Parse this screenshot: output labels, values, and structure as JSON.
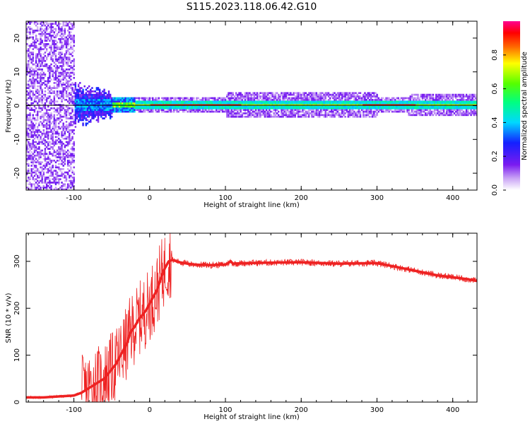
{
  "title": "S115.2023.118.06.42.G10",
  "colors": {
    "snr_line": "#ee2222",
    "baseline": "#000000"
  },
  "chart_data": [
    {
      "type": "heatmap",
      "xlabel": "Height of straight line (km)",
      "ylabel": "Frequency (Hz)",
      "xlim": [
        -163,
        432
      ],
      "ylim": [
        -25,
        25
      ],
      "xticks": [
        -100,
        0,
        100,
        200,
        300,
        400
      ],
      "yticks": [
        -20,
        -10,
        0,
        10,
        20
      ],
      "colorbar": {
        "label": "Normalized spectral amplitude",
        "range": [
          0,
          1
        ],
        "ticks": [
          0.0,
          0.2,
          0.4,
          0.6,
          0.8
        ],
        "tick_labels": [
          "0.0",
          "0.2",
          "0.4",
          "0.6",
          "0.8"
        ],
        "colormap": "rainbow"
      }
    },
    {
      "type": "line",
      "xlabel": "Height of straight line (km)",
      "ylabel": "SNR (10 * v/v)",
      "xlim": [
        -163,
        432
      ],
      "ylim": [
        0,
        360
      ],
      "xticks": [
        -100,
        0,
        100,
        200,
        300,
        400
      ],
      "yticks": [
        0,
        100,
        200,
        300
      ],
      "series": [
        {
          "x": [
            -163,
            -140,
            -120,
            -100,
            -90,
            -80,
            -70,
            -60,
            -50,
            -45,
            -40,
            -35,
            -30,
            -25,
            -20,
            -15,
            -10,
            -5,
            0,
            5,
            10,
            15,
            20,
            25,
            30,
            40,
            50,
            60,
            80,
            100,
            107,
            110,
            120,
            150,
            200,
            250,
            280,
            300,
            320,
            350,
            380,
            400,
            420,
            432
          ],
          "y": [
            10,
            10,
            12,
            14,
            20,
            30,
            40,
            50,
            70,
            80,
            95,
            110,
            125,
            150,
            160,
            175,
            185,
            195,
            210,
            225,
            240,
            265,
            285,
            300,
            303,
            298,
            295,
            293,
            292,
            293,
            300,
            295,
            296,
            297,
            298,
            295,
            296,
            296,
            290,
            280,
            270,
            266,
            262,
            258
          ]
        }
      ]
    }
  ]
}
